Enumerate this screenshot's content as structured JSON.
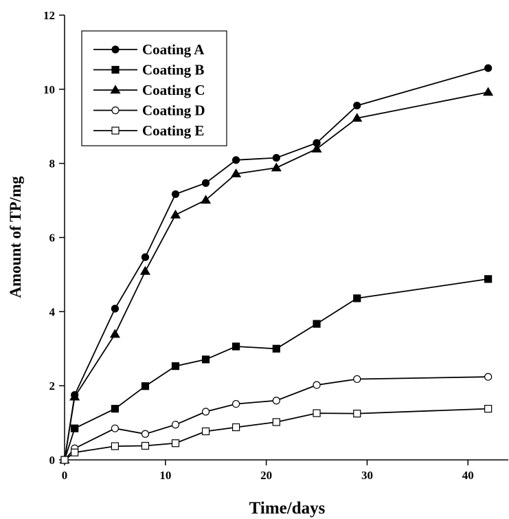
{
  "chart_data": {
    "type": "line",
    "title": "",
    "xlabel": "Time/days",
    "ylabel": "Amount of TP/mg",
    "xlim": [
      0,
      44
    ],
    "ylim": [
      0,
      12
    ],
    "xticks": [
      0,
      10,
      20,
      30,
      40
    ],
    "yticks": [
      0,
      2,
      4,
      6,
      8,
      10,
      12
    ],
    "grid": false,
    "legend_position": "top-left",
    "x": [
      0,
      1,
      5,
      8,
      11,
      14,
      17,
      21,
      25,
      29,
      42
    ],
    "series": [
      {
        "name": "Coating A",
        "marker": "filled-circle",
        "values": [
          0,
          1.75,
          4.08,
          5.47,
          7.17,
          7.47,
          8.09,
          8.15,
          8.55,
          9.56,
          10.57
        ]
      },
      {
        "name": "Coating B",
        "marker": "filled-square",
        "values": [
          0,
          0.85,
          1.38,
          1.99,
          2.53,
          2.71,
          3.06,
          3.0,
          3.67,
          4.36,
          4.88
        ]
      },
      {
        "name": "Coating C",
        "marker": "filled-triangle",
        "values": [
          0,
          1.7,
          3.39,
          5.09,
          6.61,
          7.01,
          7.72,
          7.88,
          8.39,
          9.22,
          9.92
        ]
      },
      {
        "name": "Coating D",
        "marker": "open-circle",
        "values": [
          0,
          0.31,
          0.85,
          0.7,
          0.95,
          1.3,
          1.51,
          1.6,
          2.02,
          2.18,
          2.24
        ]
      },
      {
        "name": "Coating E",
        "marker": "open-square",
        "values": [
          0,
          0.2,
          0.37,
          0.38,
          0.45,
          0.77,
          0.88,
          1.02,
          1.26,
          1.25,
          1.38
        ]
      }
    ]
  }
}
